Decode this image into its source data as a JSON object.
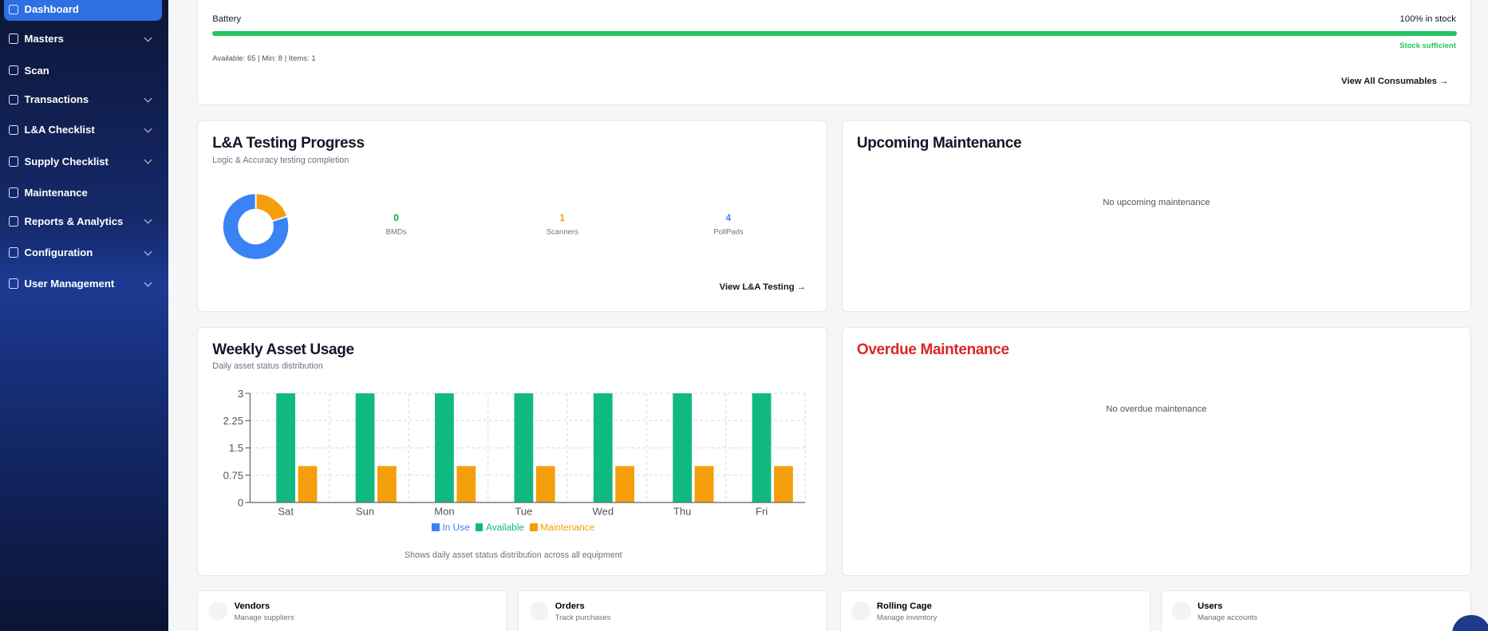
{
  "sidebar": {
    "items": [
      "Dashboard",
      "Masters",
      "Scan",
      "Transactions",
      "L&A Checklist",
      "Supply Checklist",
      "Maintenance",
      "Reports & Analytics",
      "Configuration",
      "User Management"
    ]
  },
  "consumables": {
    "name": "Battery",
    "status": "100% in stock",
    "note": "Stock sufficient",
    "details": "Available: 65 | Min: 8 | Items: 1",
    "link": "View All Consumables"
  },
  "la_testing": {
    "link": "View L&A Testing"
  },
  "upcoming": {
    "title": "Upcoming Maintenance",
    "empty": "No upcoming maintenance"
  },
  "overdue": {
    "title": "Overdue Maintenance",
    "empty": "No overdue maintenance"
  },
  "quick_links": [
    {
      "title": "Vendors",
      "subtitle": "Manage suppliers"
    },
    {
      "title": "Orders",
      "subtitle": "Track purchases"
    },
    {
      "title": "Rolling Cage",
      "subtitle": "Manage inventory"
    },
    {
      "title": "Users",
      "subtitle": "Manage accounts"
    }
  ],
  "chart_data": [
    {
      "type": "pie",
      "title": "L&A Testing Progress",
      "subtitle": "Logic & Accuracy testing completion",
      "categories": [
        "BMDs",
        "Scanners",
        "PollPads"
      ],
      "values": [
        0,
        1,
        4
      ],
      "colors": [
        "#16a34a",
        "#f59e0b",
        "#3b82f6"
      ]
    },
    {
      "type": "bar",
      "title": "Weekly Asset Usage",
      "subtitle": "Daily asset status distribution",
      "categories": [
        "Sat",
        "Sun",
        "Mon",
        "Tue",
        "Wed",
        "Thu",
        "Fri"
      ],
      "series": [
        {
          "name": "In Use",
          "color": "#3b82f6",
          "values": [
            0,
            0,
            0,
            0,
            0,
            0,
            0
          ]
        },
        {
          "name": "Available",
          "color": "#10b981",
          "values": [
            3,
            3,
            3,
            3,
            3,
            3,
            3
          ]
        },
        {
          "name": "Maintenance",
          "color": "#f59e0b",
          "values": [
            1,
            1,
            1,
            1,
            1,
            1,
            1
          ]
        }
      ],
      "ylim": [
        0,
        3
      ],
      "yticks": [
        0,
        0.75,
        1.5,
        2.25,
        3
      ],
      "grid": true,
      "note": "Shows daily asset status distribution across all equipment"
    }
  ]
}
